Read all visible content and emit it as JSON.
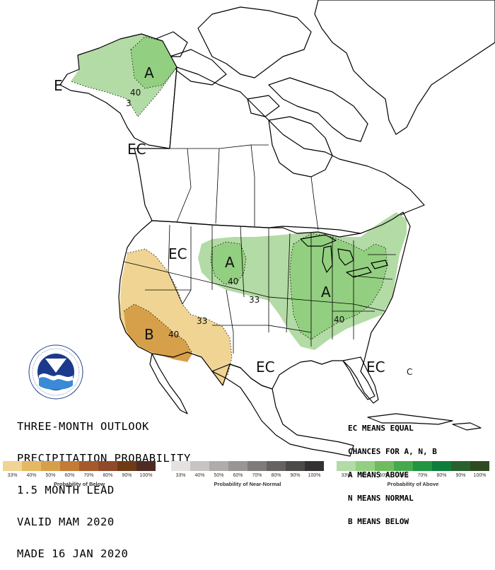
{
  "title_lines": [
    "THREE-MONTH OUTLOOK",
    "PRECIPITATION PROBABILITY",
    "1.5 MONTH LEAD",
    "VALID MAM 2020",
    "MADE 16 JAN 2020"
  ],
  "legend_note": [
    "EC MEANS EQUAL",
    "CHANCES FOR A, N, B",
    "A MEANS ABOVE",
    "N MEANS NORMAL",
    "B MEANS BELOW"
  ],
  "map_labels": {
    "alaska_a": "A",
    "alaska_e": "E",
    "alaska_40": "40",
    "alaska_33": "3",
    "bc_ec": "EC",
    "west_ec": "EC",
    "plains_a": "A",
    "plains_40": "40",
    "plains_33": "33",
    "midwest_a": "A",
    "midwest_40": "40",
    "sw_b": "B",
    "sw_40": "40",
    "sw_33": "33",
    "south_ec": "EC",
    "se_ec": "EC",
    "gulf_c": "C"
  },
  "scales": [
    {
      "name": "below",
      "title": "Probability of Below",
      "ticks": [
        "33%",
        "40%",
        "50%",
        "60%",
        "70%",
        "80%",
        "90%",
        "100%"
      ],
      "colors": [
        "#f0d493",
        "#e5b963",
        "#d6a04a",
        "#c57a35",
        "#a65a2b",
        "#8f4a29",
        "#6e3b16",
        "#4f2c23"
      ]
    },
    {
      "name": "near-normal",
      "title": "Probability of Near-Normal",
      "ticks": [
        "33%",
        "40%",
        "50%",
        "60%",
        "70%",
        "80%",
        "90%",
        "100%"
      ],
      "colors": [
        "#e6e1e1",
        "#c9c4c4",
        "#b0acac",
        "#999595",
        "#7f7b7b",
        "#666262",
        "#4d4a4a",
        "#333131"
      ]
    },
    {
      "name": "above",
      "title": "Probability of Above",
      "ticks": [
        "33%",
        "40%",
        "50%",
        "60%",
        "70%",
        "80%",
        "90%",
        "100%"
      ],
      "colors": [
        "#b3dba5",
        "#93cf80",
        "#6fbb60",
        "#46a94e",
        "#21953f",
        "#0e7d3b",
        "#2a5f2e",
        "#2f4a23"
      ]
    }
  ]
}
